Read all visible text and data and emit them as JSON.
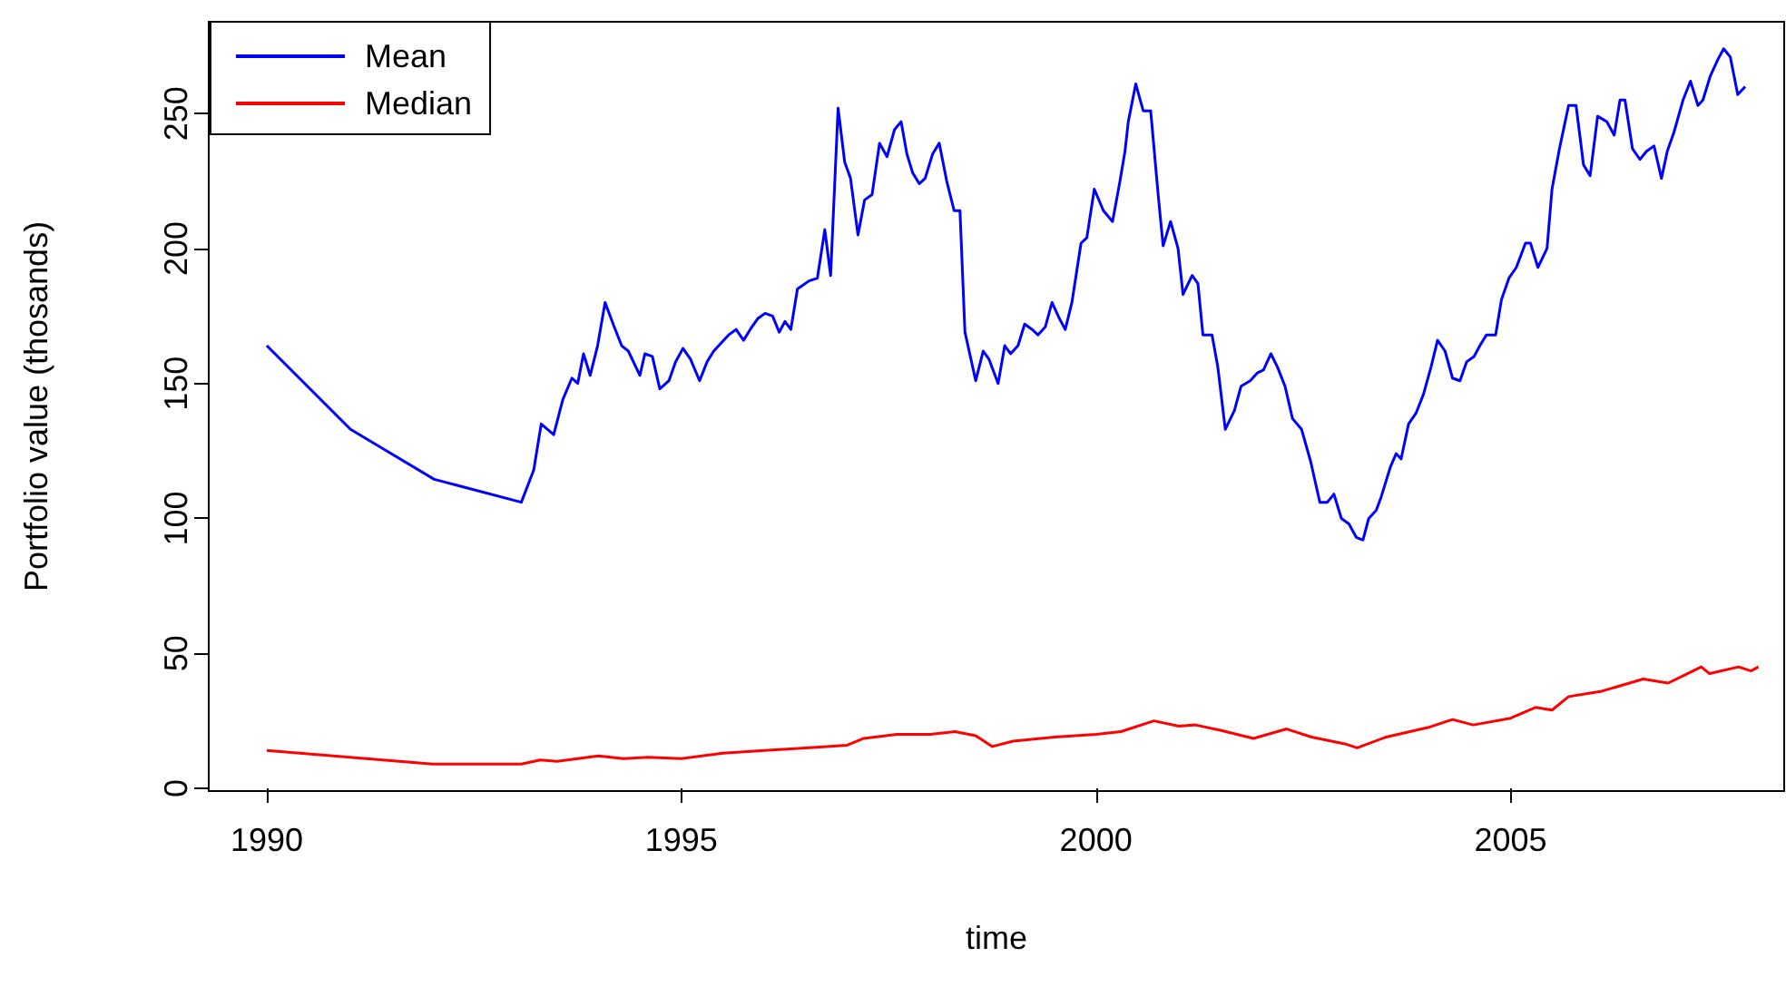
{
  "chart_data": {
    "type": "line",
    "xlabel": "time",
    "ylabel": "Portfolio value (thosands)",
    "xlim": [
      1989.3,
      2008.3
    ],
    "ylim": [
      -1,
      284
    ],
    "xticks": [
      1990,
      1995,
      2000,
      2005
    ],
    "yticks": [
      0,
      50,
      100,
      150,
      200,
      250
    ],
    "grid": false,
    "legend": "top left",
    "line_style": "solid",
    "marker": "none",
    "series": [
      {
        "name": "Mean",
        "color": "#0000ff",
        "x": [
          1990,
          1991.01,
          1992.02,
          1993.07,
          1993.22,
          1993.31,
          1993.46,
          1993.57,
          1993.68,
          1993.75,
          1993.82,
          1993.9,
          1993.99,
          1994.08,
          1994.19,
          1994.28,
          1994.36,
          1994.5,
          1994.56,
          1994.65,
          1994.74,
          1994.85,
          1994.93,
          1995.02,
          1995.11,
          1995.22,
          1995.31,
          1995.39,
          1995.57,
          1995.66,
          1995.75,
          1995.83,
          1995.92,
          1996.01,
          1996.1,
          1996.18,
          1996.25,
          1996.32,
          1996.4,
          1996.54,
          1996.64,
          1996.73,
          1996.8,
          1996.89,
          1996.97,
          1997.04,
          1997.13,
          1997.21,
          1997.3,
          1997.39,
          1997.48,
          1997.57,
          1997.65,
          1997.72,
          1997.79,
          1997.87,
          1997.94,
          1998.03,
          1998.11,
          1998.2,
          1998.29,
          1998.36,
          1998.42,
          1998.55,
          1998.64,
          1998.71,
          1998.82,
          1998.9,
          1998.97,
          1999.06,
          1999.14,
          1999.23,
          1999.3,
          1999.39,
          1999.47,
          1999.56,
          1999.63,
          1999.71,
          1999.82,
          1999.89,
          1999.98,
          2000.09,
          2000.2,
          2000.29,
          2000.35,
          2000.39,
          2000.48,
          2000.57,
          2000.66,
          2000.75,
          2000.81,
          2000.9,
          2000.99,
          2001.05,
          2001.16,
          2001.23,
          2001.29,
          2001.4,
          2001.47,
          2001.56,
          2001.67,
          2001.75,
          2001.86,
          2001.95,
          2002.02,
          2002.11,
          2002.19,
          2002.28,
          2002.37,
          2002.48,
          2002.59,
          2002.7,
          2002.79,
          2002.87,
          2002.96,
          2003.05,
          2003.14,
          2003.22,
          2003.29,
          2003.38,
          2003.44,
          2003.55,
          2003.62,
          2003.68,
          2003.77,
          2003.86,
          2003.95,
          2004.04,
          2004.12,
          2004.21,
          2004.3,
          2004.39,
          2004.47,
          2004.56,
          2004.63,
          2004.71,
          2004.82,
          2004.89,
          2004.98,
          2005.07,
          2005.18,
          2005.24,
          2005.33,
          2005.44,
          2005.5,
          2005.59,
          2005.7,
          2005.79,
          2005.88,
          2005.96,
          2006.05,
          2006.16,
          2006.25,
          2006.32,
          2006.38,
          2006.47,
          2006.56,
          2006.64,
          2006.73,
          2006.82,
          2006.89,
          2006.97,
          2007.08,
          2007.17,
          2007.26,
          2007.32,
          2007.41,
          2007.5,
          2007.57,
          2007.65,
          2007.74,
          2007.83
        ],
        "values": [
          164,
          133,
          114.5,
          106,
          118,
          135,
          131,
          144,
          152,
          150,
          161,
          153,
          164,
          180,
          171,
          164,
          162,
          153,
          161,
          160,
          148,
          151,
          158,
          163,
          159,
          151,
          158,
          162,
          168,
          170,
          166,
          170,
          174,
          176,
          175,
          169,
          173,
          170,
          185,
          188,
          189,
          207,
          190,
          252,
          232,
          226,
          205,
          218,
          220,
          239,
          234,
          244,
          247,
          235,
          228,
          224,
          226,
          235,
          239,
          225,
          214,
          214,
          169,
          151,
          162,
          159,
          150,
          164,
          161,
          164,
          172,
          170,
          168,
          171,
          180,
          174,
          170,
          180,
          202,
          204,
          222,
          214,
          210,
          225,
          236,
          247,
          261,
          251,
          251,
          220,
          201,
          210,
          200,
          183,
          190,
          187,
          168,
          168,
          156,
          133,
          140,
          149,
          151,
          154,
          155,
          161,
          156,
          149,
          137,
          133,
          121,
          106,
          106,
          109,
          100,
          98,
          93,
          92,
          100,
          103,
          108,
          119,
          124,
          122,
          135,
          139,
          146,
          156,
          166,
          162,
          152,
          151,
          158,
          160,
          164,
          168,
          168,
          181,
          189,
          193,
          202,
          202,
          193,
          200,
          222,
          237,
          253,
          253,
          231,
          227,
          249,
          247,
          242,
          255,
          255,
          237,
          233,
          236,
          238,
          226,
          236,
          243,
          255,
          262,
          253,
          255,
          264,
          270,
          274,
          271,
          257,
          260
        ]
      },
      {
        "name": "Median",
        "color": "#ff0000",
        "x": [
          1990,
          1992,
          1993.07,
          1993.3,
          1993.5,
          1993.75,
          1994,
          1994.3,
          1994.6,
          1995,
          1995.5,
          1996,
          1996.5,
          1997,
          1997.2,
          1997.6,
          1998,
          1998.3,
          1998.55,
          1998.75,
          1999,
          1999.5,
          2000,
          2000.3,
          2000.7,
          2001,
          2001.2,
          2001.5,
          2001.9,
          2002.3,
          2002.6,
          2003,
          2003.15,
          2003.5,
          2004,
          2004.3,
          2004.55,
          2005,
          2005.3,
          2005.5,
          2005.7,
          2006.1,
          2006.6,
          2006.9,
          2007.1,
          2007.3,
          2007.4,
          2007.75,
          2007.9,
          2007.99
        ],
        "values": [
          14,
          9,
          9,
          10.5,
          10,
          11,
          12,
          11,
          11.5,
          11,
          13,
          14,
          15,
          16,
          18.5,
          20,
          20,
          21,
          19.5,
          15.5,
          17.5,
          19,
          20,
          21,
          25,
          23,
          23.5,
          21.5,
          18.5,
          22,
          19,
          16.5,
          15,
          19,
          22.5,
          25.5,
          23.5,
          26,
          30,
          29,
          34,
          36,
          40.5,
          39,
          42,
          45,
          42.5,
          45,
          43.5,
          45
        ]
      }
    ]
  }
}
